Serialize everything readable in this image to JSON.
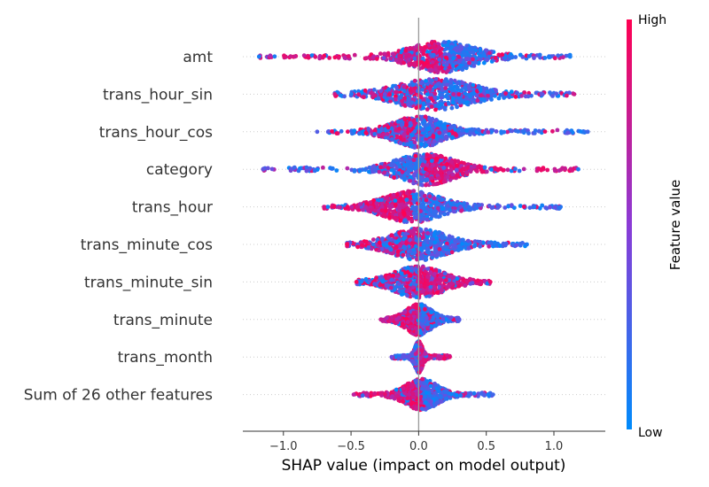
{
  "chart_data": {
    "type": "scatter",
    "subtype": "shap-beeswarm",
    "title": "",
    "xlabel": "SHAP value (impact on model output)",
    "xlim": [
      -1.3,
      1.38
    ],
    "x_ticks": [
      -1.0,
      -0.5,
      0.0,
      0.5,
      1.0
    ],
    "x_tick_labels": [
      "−1.0",
      "−0.5",
      "0.0",
      "0.5",
      "1.0"
    ],
    "grid": "dotted horizontal row guides",
    "colorbar": {
      "title": "Feature value",
      "high_label": "High",
      "low_label": "Low",
      "low_color": "#008bfb",
      "mid_color": "#8b3bd6",
      "high_color": "#ff0052"
    },
    "series": [
      {
        "name": "amt",
        "min": -1.18,
        "max": 1.12,
        "peak": 0.18,
        "peak_width": 0.5,
        "low_side": "right",
        "high_side": "left"
      },
      {
        "name": "trans_hour_sin",
        "min": -0.62,
        "max": 1.15,
        "peak": 0.12,
        "peak_width": 0.6,
        "low_side": "right",
        "high_side": "mixed"
      },
      {
        "name": "trans_hour_cos",
        "min": -0.75,
        "max": 1.25,
        "peak": 0.0,
        "peak_width": 0.4,
        "low_side": "right",
        "high_side": "center"
      },
      {
        "name": "category",
        "min": -1.15,
        "max": 1.18,
        "peak": 0.05,
        "peak_width": 0.45,
        "low_side": "left",
        "high_side": "right"
      },
      {
        "name": "trans_hour",
        "min": -0.7,
        "max": 1.05,
        "peak": -0.05,
        "peak_width": 0.45,
        "low_side": "right",
        "high_side": "left"
      },
      {
        "name": "trans_minute_cos",
        "min": -0.53,
        "max": 0.8,
        "peak": 0.0,
        "peak_width": 0.45,
        "low_side": "right",
        "high_side": "mixed"
      },
      {
        "name": "trans_minute_sin",
        "min": -0.46,
        "max": 0.53,
        "peak": 0.0,
        "peak_width": 0.4,
        "low_side": "mixed",
        "high_side": "right"
      },
      {
        "name": "trans_minute",
        "min": -0.28,
        "max": 0.3,
        "peak": 0.0,
        "peak_width": 0.2,
        "low_side": "right",
        "high_side": "left"
      },
      {
        "name": "trans_month",
        "min": -0.2,
        "max": 0.23,
        "peak": 0.0,
        "peak_width": 0.06,
        "low_side": "left",
        "high_side": "right"
      },
      {
        "name": "Sum of 26 other features",
        "min": -0.48,
        "max": 0.55,
        "peak": 0.02,
        "peak_width": 0.25,
        "low_side": "right",
        "high_side": "left"
      }
    ]
  }
}
